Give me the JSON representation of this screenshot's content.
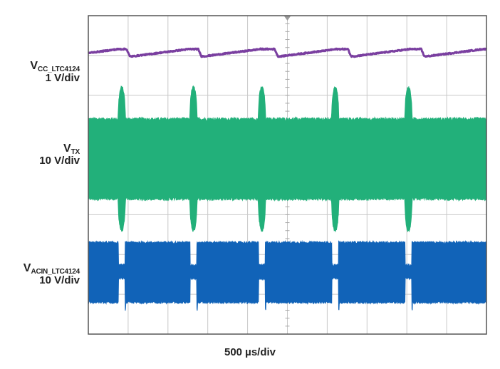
{
  "chart_data": {
    "type": "line",
    "title": "",
    "xlabel": "500 µs/div",
    "ylabel": "",
    "grid": true,
    "divisions": {
      "x": 10,
      "y": 8
    },
    "x_unit": "µs",
    "x_per_div": 500,
    "xlim": [
      0,
      5000
    ],
    "ylim_div": [
      0,
      8
    ],
    "series": [
      {
        "id": "vcc",
        "label_symbol": "V",
        "label_subscript": "CC_LTC4124",
        "label_scale": "1 V/div",
        "color": "#7a3fa0",
        "baseline_div": 7.1,
        "dip_times_us": [
          480,
          1380,
          2340,
          3260,
          4180
        ],
        "dip_depth_div": 0.18
      },
      {
        "id": "vtx",
        "label_symbol": "V",
        "label_subscript": "TX",
        "label_scale": "10 V/div",
        "color": "#22b07a",
        "center_div": 4.4,
        "half_amplitude_div": 1.0,
        "burst_times_us": [
          420,
          1320,
          2180,
          3100,
          4020
        ],
        "burst_half_amplitude_div": 1.8,
        "burst_width_us": 90
      },
      {
        "id": "vacin",
        "label_symbol": "V",
        "label_subscript": "ACIN_LTC4124",
        "label_scale": "10 V/div",
        "color": "#1163b8",
        "low_div": 0.8,
        "high_div": 2.3,
        "gap_times_us": [
          420,
          1320,
          2180,
          3100,
          4020
        ],
        "gap_width_us": 80
      }
    ]
  }
}
